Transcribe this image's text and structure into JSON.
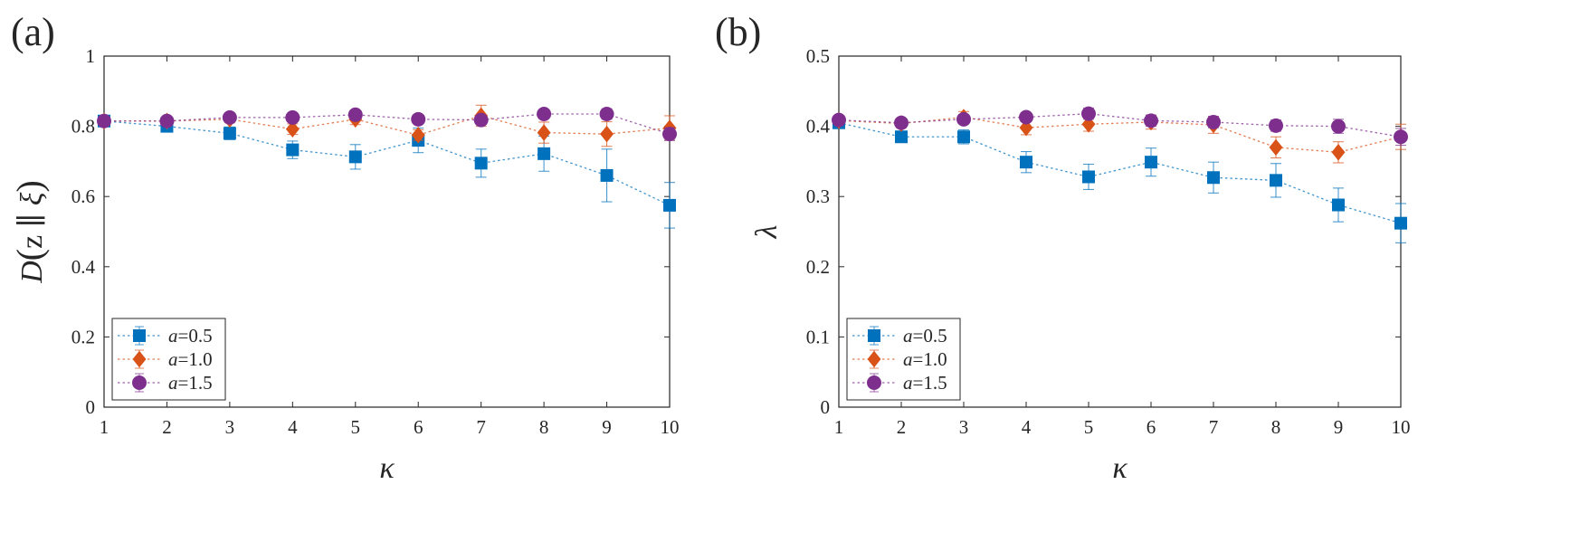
{
  "chart_data": [
    {
      "type": "line",
      "panel_label": "(a)",
      "title": "",
      "xlabel": "κ",
      "ylabel": "D(z ∥ ξ)",
      "ylabel_parts": {
        "prefix": "D",
        "open": "(",
        "body": "z ∥ ",
        "xi": "ξ",
        "close": ")"
      },
      "x": [
        1,
        2,
        3,
        4,
        5,
        6,
        7,
        8,
        9,
        10
      ],
      "xlim": [
        1,
        10
      ],
      "ylim": [
        0,
        1
      ],
      "xticks": [
        "1",
        "2",
        "3",
        "4",
        "5",
        "6",
        "7",
        "8",
        "9",
        "10"
      ],
      "yticks": [
        "0",
        "0.2",
        "0.4",
        "0.6",
        "0.8",
        "1"
      ],
      "ytick_values": [
        0,
        0.2,
        0.4,
        0.6,
        0.8,
        1
      ],
      "grid": false,
      "legend_position": "bottom-left",
      "series": [
        {
          "name": "a=0.5",
          "legend_var": "a",
          "legend_val": "=0.5",
          "color": "#0072BD",
          "marker": "square",
          "values": [
            0.815,
            0.8,
            0.78,
            0.733,
            0.713,
            0.76,
            0.695,
            0.722,
            0.66,
            0.575
          ],
          "errors": [
            0.01,
            0.01,
            0.018,
            0.025,
            0.035,
            0.035,
            0.04,
            0.05,
            0.075,
            0.065
          ]
        },
        {
          "name": "a=1.0",
          "legend_var": "a",
          "legend_val": "=1.0",
          "color": "#D95319",
          "marker": "diamond",
          "values": [
            0.815,
            0.815,
            0.82,
            0.792,
            0.82,
            0.775,
            0.83,
            0.782,
            0.778,
            0.795
          ],
          "errors": [
            0.008,
            0.008,
            0.01,
            0.015,
            0.015,
            0.015,
            0.03,
            0.03,
            0.035,
            0.035
          ]
        },
        {
          "name": "a=1.5",
          "legend_var": "a",
          "legend_val": "=1.5",
          "color": "#7E2F8E",
          "marker": "circle",
          "values": [
            0.815,
            0.815,
            0.825,
            0.825,
            0.833,
            0.82,
            0.818,
            0.835,
            0.835,
            0.778
          ],
          "errors": [
            0.008,
            0.008,
            0.01,
            0.01,
            0.01,
            0.01,
            0.012,
            0.012,
            0.015,
            0.018
          ]
        }
      ]
    },
    {
      "type": "line",
      "panel_label": "(b)",
      "title": "",
      "xlabel": "κ",
      "ylabel": "λ",
      "x": [
        1,
        2,
        3,
        4,
        5,
        6,
        7,
        8,
        9,
        10
      ],
      "xlim": [
        1,
        10
      ],
      "ylim": [
        0,
        0.5
      ],
      "xticks": [
        "1",
        "2",
        "3",
        "4",
        "5",
        "6",
        "7",
        "8",
        "9",
        "10"
      ],
      "yticks": [
        "0",
        "0.1",
        "0.2",
        "0.3",
        "0.4",
        "0.5"
      ],
      "ytick_values": [
        0,
        0.1,
        0.2,
        0.3,
        0.4,
        0.5
      ],
      "grid": false,
      "legend_position": "bottom-left",
      "series": [
        {
          "name": "a=0.5",
          "legend_var": "a",
          "legend_val": "=0.5",
          "color": "#0072BD",
          "marker": "square",
          "values": [
            0.405,
            0.385,
            0.385,
            0.349,
            0.328,
            0.349,
            0.327,
            0.323,
            0.288,
            0.262
          ],
          "errors": [
            0.006,
            0.008,
            0.01,
            0.015,
            0.018,
            0.02,
            0.022,
            0.024,
            0.024,
            0.028
          ]
        },
        {
          "name": "a=1.0",
          "legend_var": "a",
          "legend_val": "=1.0",
          "color": "#D95319",
          "marker": "diamond",
          "values": [
            0.408,
            0.404,
            0.413,
            0.398,
            0.403,
            0.406,
            0.402,
            0.37,
            0.363,
            0.385
          ],
          "errors": [
            0.005,
            0.006,
            0.008,
            0.01,
            0.01,
            0.01,
            0.012,
            0.015,
            0.015,
            0.018
          ]
        },
        {
          "name": "a=1.5",
          "legend_var": "a",
          "legend_val": "=1.5",
          "color": "#7E2F8E",
          "marker": "circle",
          "values": [
            0.409,
            0.405,
            0.41,
            0.413,
            0.418,
            0.408,
            0.406,
            0.401,
            0.4,
            0.385
          ],
          "errors": [
            0.005,
            0.005,
            0.006,
            0.006,
            0.008,
            0.008,
            0.008,
            0.008,
            0.01,
            0.012
          ]
        }
      ]
    }
  ]
}
